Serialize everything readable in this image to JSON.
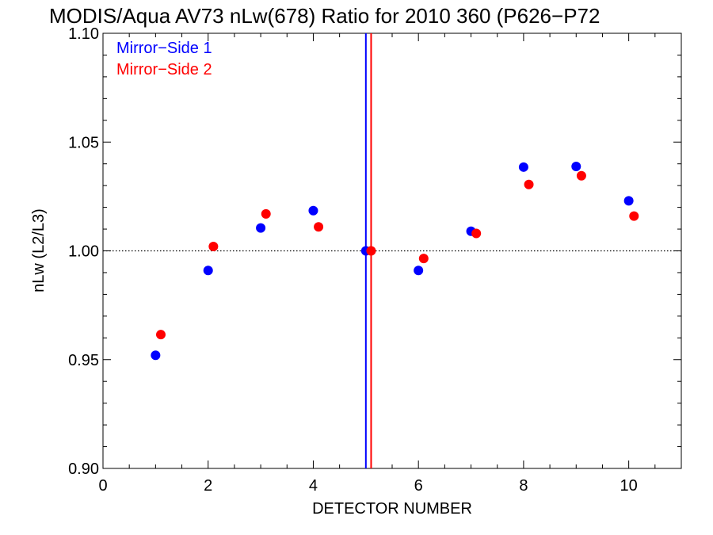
{
  "chart_data": {
    "type": "scatter",
    "title": "MODIS/Aqua AV73 nLw(678) Ratio for 2010 360 (P626−P72",
    "xlabel": "DETECTOR NUMBER",
    "ylabel": "nLw (L2/L3)",
    "xlim": [
      0,
      11
    ],
    "ylim": [
      0.9,
      1.1
    ],
    "xticks": [
      0,
      2,
      4,
      6,
      8,
      10
    ],
    "xtick_labels": [
      "0",
      "2",
      "4",
      "6",
      "8",
      "10"
    ],
    "yticks": [
      0.9,
      0.95,
      1.0,
      1.05,
      1.1
    ],
    "ytick_labels": [
      "0.90",
      "0.95",
      "1.00",
      "1.05",
      "1.10"
    ],
    "reference_line_y": 1.0,
    "legend_position": "top-left",
    "grid": false,
    "series": [
      {
        "name": "Mirror−Side 1",
        "color": "#0000ff",
        "vline_x": 5.0,
        "x": [
          1,
          2,
          3,
          4,
          5,
          6,
          7,
          8,
          9,
          10
        ],
        "y": [
          0.952,
          0.991,
          1.0105,
          1.0185,
          1.0,
          0.991,
          1.009,
          1.0385,
          1.0388,
          1.023
        ]
      },
      {
        "name": "Mirror−Side 2",
        "color": "#ff0000",
        "vline_x": 5.1,
        "x": [
          1.1,
          2.1,
          3.1,
          4.1,
          5.1,
          6.1,
          7.1,
          8.1,
          9.1,
          10.1
        ],
        "y": [
          0.9615,
          1.002,
          1.017,
          1.011,
          1.0,
          0.9965,
          1.008,
          1.0305,
          1.0345,
          1.016
        ]
      }
    ]
  }
}
